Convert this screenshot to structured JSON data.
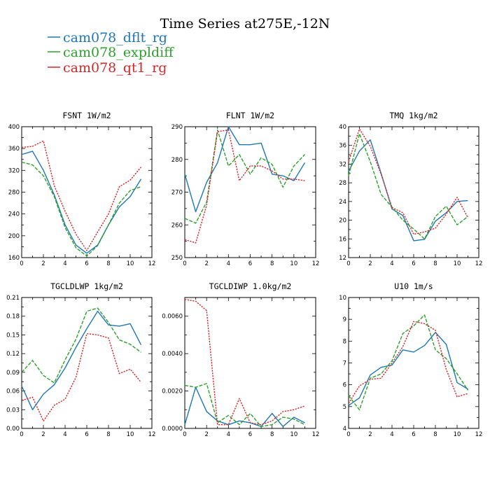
{
  "title": "Time Series at275E,-12N",
  "legend": [
    {
      "label": "cam078_dflt_rg",
      "color": "#1f77b4",
      "dash": false
    },
    {
      "label": "cam078_expldiff",
      "color": "#2ca02c",
      "dash": true
    },
    {
      "label": "cam078_qt1_rg",
      "color": "#d62728",
      "dash": true
    }
  ],
  "chart_data": [
    {
      "type": "line",
      "title": "FSNT  1W/m2",
      "x": [
        0,
        1,
        2,
        3,
        4,
        5,
        6,
        7,
        8,
        9,
        10,
        11
      ],
      "xlim": [
        0,
        12
      ],
      "xticks": [
        0,
        2,
        4,
        6,
        8,
        10,
        12
      ],
      "ylim": [
        160,
        400
      ],
      "yticks": [
        160,
        200,
        240,
        280,
        320,
        360,
        400
      ],
      "ytick_labels": [
        "160",
        "200",
        "240",
        "280",
        "320",
        "360",
        "400"
      ],
      "grid": false,
      "series": [
        {
          "name": "cam078_dflt_rg",
          "values": [
            349,
            355,
            320,
            275,
            220,
            183,
            168,
            183,
            220,
            253,
            272,
            304
          ]
        },
        {
          "name": "cam078_expldiff",
          "values": [
            335,
            330,
            310,
            272,
            215,
            178,
            163,
            182,
            220,
            260,
            283,
            290
          ]
        },
        {
          "name": "cam078_qt1_rg",
          "values": [
            362,
            364,
            374,
            292,
            245,
            203,
            173,
            207,
            240,
            290,
            302,
            326
          ]
        }
      ]
    },
    {
      "type": "line",
      "title": "FLNT  1W/m2",
      "x": [
        0,
        1,
        2,
        3,
        4,
        5,
        6,
        7,
        8,
        9,
        10,
        11
      ],
      "xlim": [
        0,
        12
      ],
      "xticks": [
        0,
        2,
        4,
        6,
        8,
        10,
        12
      ],
      "ylim": [
        250,
        290
      ],
      "yticks": [
        250,
        260,
        270,
        280,
        290
      ],
      "ytick_labels": [
        "250",
        "260",
        "270",
        "280",
        "290"
      ],
      "grid": false,
      "series": [
        {
          "name": "cam078_dflt_rg",
          "values": [
            275.5,
            264,
            273,
            279,
            290,
            284.5,
            284.5,
            285,
            275.5,
            275,
            273.5,
            279
          ]
        },
        {
          "name": "cam078_expldiff",
          "values": [
            262,
            260.5,
            267,
            289,
            278,
            281.5,
            275.5,
            280.5,
            278.5,
            271.5,
            278,
            281.5
          ]
        },
        {
          "name": "cam078_qt1_rg",
          "values": [
            255.5,
            254.5,
            266,
            288.5,
            289,
            273.5,
            278,
            278,
            276.5,
            274,
            274,
            273.5
          ]
        }
      ]
    },
    {
      "type": "line",
      "title": "TMQ  1kg/m2",
      "x": [
        0,
        1,
        2,
        3,
        4,
        5,
        6,
        7,
        8,
        9,
        10,
        11
      ],
      "xlim": [
        0,
        12
      ],
      "xticks": [
        0,
        2,
        4,
        6,
        8,
        10,
        12
      ],
      "ylim": [
        12,
        40
      ],
      "yticks": [
        12,
        16,
        20,
        24,
        28,
        32,
        36,
        40
      ],
      "ytick_labels": [
        "12",
        "16",
        "20",
        "24",
        "28",
        "32",
        "36",
        "40"
      ],
      "grid": false,
      "series": [
        {
          "name": "cam078_dflt_rg",
          "values": [
            30.5,
            34.8,
            37.2,
            30,
            22.4,
            21,
            15.6,
            15.9,
            19.8,
            21.6,
            24,
            24.2
          ]
        },
        {
          "name": "cam078_expldiff",
          "values": [
            29.5,
            38.5,
            32.5,
            25.5,
            22.8,
            20,
            18.1,
            16,
            20.8,
            23,
            19,
            20.8
          ]
        },
        {
          "name": "cam078_qt1_rg",
          "values": [
            32.5,
            39.5,
            35.8,
            29.8,
            22.7,
            21.6,
            17,
            17.5,
            18.3,
            21.3,
            24.9,
            20.5
          ]
        }
      ]
    },
    {
      "type": "line",
      "title": "TGCLDLWP  1kg/m2",
      "x": [
        0,
        1,
        2,
        3,
        4,
        5,
        6,
        7,
        8,
        9,
        10,
        11
      ],
      "xlim": [
        0,
        12
      ],
      "xticks": [
        0,
        2,
        4,
        6,
        8,
        10,
        12
      ],
      "ylim": [
        0,
        0.21
      ],
      "yticks": [
        0,
        0.03,
        0.06,
        0.09,
        0.12,
        0.15,
        0.18,
        0.21
      ],
      "ytick_labels": [
        "0.00",
        "0.03",
        "0.06",
        "0.09",
        "0.12",
        "0.15",
        "0.18",
        "0.21"
      ],
      "grid": false,
      "series": [
        {
          "name": "cam078_dflt_rg",
          "values": [
            0.068,
            0.03,
            0.055,
            0.07,
            0.097,
            0.13,
            0.16,
            0.188,
            0.166,
            0.164,
            0.168,
            0.134
          ]
        },
        {
          "name": "cam078_expldiff",
          "values": [
            0.09,
            0.109,
            0.085,
            0.073,
            0.11,
            0.143,
            0.188,
            0.193,
            0.17,
            0.142,
            0.135,
            0.122
          ]
        },
        {
          "name": "cam078_qt1_rg",
          "values": [
            0.045,
            0.05,
            0.012,
            0.037,
            0.047,
            0.082,
            0.152,
            0.15,
            0.145,
            0.088,
            0.095,
            0.074
          ]
        }
      ]
    },
    {
      "type": "line",
      "title": "TGCLDIWP  1.0kg/m2",
      "x": [
        0,
        1,
        2,
        3,
        4,
        5,
        6,
        7,
        8,
        9,
        10,
        11
      ],
      "xlim": [
        0,
        12
      ],
      "xticks": [
        0,
        2,
        4,
        6,
        8,
        10,
        12
      ],
      "ylim": [
        0,
        0.007
      ],
      "yticks": [
        0,
        0.002,
        0.004,
        0.006
      ],
      "ytick_labels": [
        "0.0000",
        "0.0020",
        "0.0040",
        "0.0060"
      ],
      "grid": false,
      "series": [
        {
          "name": "cam078_dflt_rg",
          "values": [
            0.0002,
            0.0022,
            0.0009,
            0.0004,
            0.0002,
            0.0004,
            0.0003,
            0.0001,
            0.0008,
            0.0001,
            0.0006,
            0.0003
          ]
        },
        {
          "name": "cam078_expldiff",
          "values": [
            0.0023,
            0.0022,
            0.0024,
            0.0003,
            0.0007,
            0.0002,
            0.0008,
            0.0001,
            0.0002,
            0.0006,
            0.0005,
            0.0002
          ]
        },
        {
          "name": "cam078_qt1_rg",
          "values": [
            0.0069,
            0.0068,
            0.0063,
            0.0002,
            0.0002,
            0.0016,
            0.0003,
            0.0002,
            0.0004,
            0.0009,
            0.001,
            0.0012
          ]
        }
      ]
    },
    {
      "type": "line",
      "title": "U10  1m/s",
      "x": [
        0,
        1,
        2,
        3,
        4,
        5,
        6,
        7,
        8,
        9,
        10,
        11
      ],
      "xlim": [
        0,
        12
      ],
      "xticks": [
        0,
        2,
        4,
        6,
        8,
        10,
        12
      ],
      "ylim": [
        4,
        10
      ],
      "yticks": [
        4,
        5,
        6,
        7,
        8,
        9,
        10
      ],
      "ytick_labels": [
        "4",
        "5",
        "6",
        "7",
        "8",
        "9",
        "10"
      ],
      "grid": false,
      "series": [
        {
          "name": "cam078_dflt_rg",
          "values": [
            5.05,
            5.4,
            6.45,
            6.8,
            6.9,
            7.6,
            7.5,
            7.8,
            8.4,
            7.85,
            6.1,
            5.8
          ]
        },
        {
          "name": "cam078_expldiff",
          "values": [
            5.5,
            4.85,
            6.3,
            6.5,
            7.1,
            8.35,
            8.7,
            9.2,
            7.6,
            7.2,
            6.5,
            5.75
          ]
        },
        {
          "name": "cam078_qt1_rg",
          "values": [
            5.15,
            5.95,
            6.25,
            6.3,
            7.0,
            7.75,
            8.9,
            8.8,
            8.5,
            6.7,
            5.45,
            5.6
          ]
        }
      ]
    }
  ]
}
